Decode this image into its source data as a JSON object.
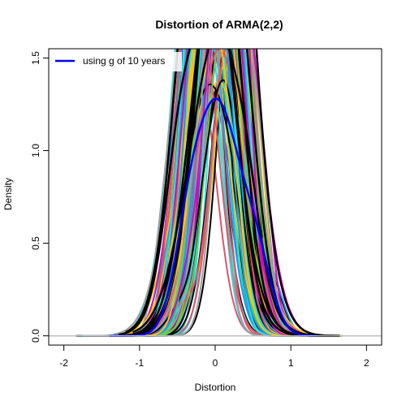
{
  "chart_data": {
    "type": "line",
    "title": "Distortion of ARMA(2,2)",
    "xlabel": "Distortion",
    "ylabel": "Density",
    "xlim": [
      -2.2,
      2.2
    ],
    "ylim": [
      -0.05,
      1.55
    ],
    "x_ticks": [
      -2,
      -1,
      0,
      1,
      2
    ],
    "x_tick_labels": [
      "-2",
      "-1",
      "0",
      "1",
      "2"
    ],
    "y_ticks": [
      0.0,
      0.5,
      1.0,
      1.5
    ],
    "y_tick_labels": [
      "0.0",
      "0.5",
      "1.0",
      "1.5"
    ],
    "legend": {
      "position": "top-left",
      "entries": [
        {
          "label": "using g of 10 years",
          "color": "#0000ff"
        }
      ]
    },
    "baseline": {
      "y": 0,
      "color": "#bebebe"
    },
    "palette": [
      "#000000",
      "#df536b",
      "#61d04f",
      "#2297e6",
      "#28e2e5",
      "#cd0bbc",
      "#f5c710",
      "#9e9e9e"
    ],
    "highlight_color": "#0000ff",
    "series_count": 120,
    "series_shape": "kernel densities of distortion, centered near 0, x range about -1.8 to 1.7, peaks exceeding the y-axis upper limit"
  }
}
